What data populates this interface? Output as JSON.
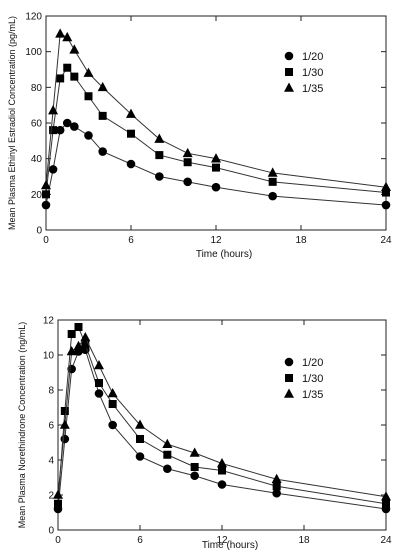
{
  "chart_data": [
    {
      "type": "line",
      "xlabel": "Time (hours)",
      "ylabel": "Mean Plasma Ethinyl Estradiol Concentration (pg/mL)",
      "xlim": [
        0,
        24
      ],
      "ylim": [
        0,
        120
      ],
      "xticks": [
        0,
        6,
        12,
        18,
        24
      ],
      "yticks": [
        0,
        20,
        40,
        60,
        80,
        100,
        120
      ],
      "legend_position": "top-right",
      "marker_color": "#000000",
      "series": [
        {
          "name": "1/20",
          "marker": "circle",
          "points": [
            [
              0,
              14
            ],
            [
              0.5,
              34
            ],
            [
              1,
              56
            ],
            [
              1.5,
              60
            ],
            [
              2,
              58
            ],
            [
              3,
              53
            ],
            [
              4,
              44
            ],
            [
              6,
              37
            ],
            [
              8,
              30
            ],
            [
              10,
              27
            ],
            [
              12,
              24
            ],
            [
              16,
              19
            ],
            [
              24,
              14
            ]
          ]
        },
        {
          "name": "1/30",
          "marker": "square",
          "points": [
            [
              0,
              20
            ],
            [
              0.5,
              56
            ],
            [
              1,
              85
            ],
            [
              1.5,
              91
            ],
            [
              2,
              86
            ],
            [
              3,
              75
            ],
            [
              4,
              64
            ],
            [
              6,
              54
            ],
            [
              8,
              42
            ],
            [
              10,
              38
            ],
            [
              12,
              35
            ],
            [
              16,
              27
            ],
            [
              24,
              21
            ]
          ]
        },
        {
          "name": "1/35",
          "marker": "triangle",
          "points": [
            [
              0,
              25
            ],
            [
              0.5,
              67
            ],
            [
              1,
              110
            ],
            [
              1.5,
              108
            ],
            [
              2,
              101
            ],
            [
              3,
              88
            ],
            [
              4,
              80
            ],
            [
              6,
              65
            ],
            [
              8,
              51
            ],
            [
              10,
              43
            ],
            [
              12,
              40
            ],
            [
              16,
              32
            ],
            [
              24,
              24
            ]
          ]
        }
      ]
    },
    {
      "type": "line",
      "xlabel": "Time (hours)",
      "ylabel": "Mean Plasma Norethindrone Concentration (ng/mL)",
      "xlim": [
        0,
        24
      ],
      "ylim": [
        0,
        12
      ],
      "xticks": [
        0,
        6,
        12,
        18,
        24
      ],
      "yticks": [
        0,
        2,
        4,
        6,
        8,
        10,
        12
      ],
      "legend_position": "top-right",
      "marker_color": "#000000",
      "series": [
        {
          "name": "1/20",
          "marker": "circle",
          "points": [
            [
              0,
              1.2
            ],
            [
              0.5,
              5.2
            ],
            [
              1,
              9.2
            ],
            [
              1.5,
              10.2
            ],
            [
              2,
              10.3
            ],
            [
              3,
              7.8
            ],
            [
              4,
              6.0
            ],
            [
              6,
              4.2
            ],
            [
              8,
              3.5
            ],
            [
              10,
              3.1
            ],
            [
              12,
              2.6
            ],
            [
              16,
              2.1
            ],
            [
              24,
              1.2
            ]
          ]
        },
        {
          "name": "1/30",
          "marker": "square",
          "points": [
            [
              0,
              1.5
            ],
            [
              0.5,
              6.8
            ],
            [
              1,
              11.2
            ],
            [
              1.5,
              11.6
            ],
            [
              2,
              10.6
            ],
            [
              3,
              8.4
            ],
            [
              4,
              7.2
            ],
            [
              6,
              5.2
            ],
            [
              8,
              4.3
            ],
            [
              10,
              3.6
            ],
            [
              12,
              3.4
            ],
            [
              16,
              2.5
            ],
            [
              24,
              1.5
            ]
          ]
        },
        {
          "name": "1/35",
          "marker": "triangle",
          "points": [
            [
              0,
              2.0
            ],
            [
              0.5,
              6.0
            ],
            [
              1,
              10.2
            ],
            [
              1.5,
              10.5
            ],
            [
              2,
              11.0
            ],
            [
              3,
              9.4
            ],
            [
              4,
              7.8
            ],
            [
              6,
              6.0
            ],
            [
              8,
              4.9
            ],
            [
              10,
              4.4
            ],
            [
              12,
              3.8
            ],
            [
              16,
              2.9
            ],
            [
              24,
              1.9
            ]
          ]
        }
      ]
    }
  ]
}
